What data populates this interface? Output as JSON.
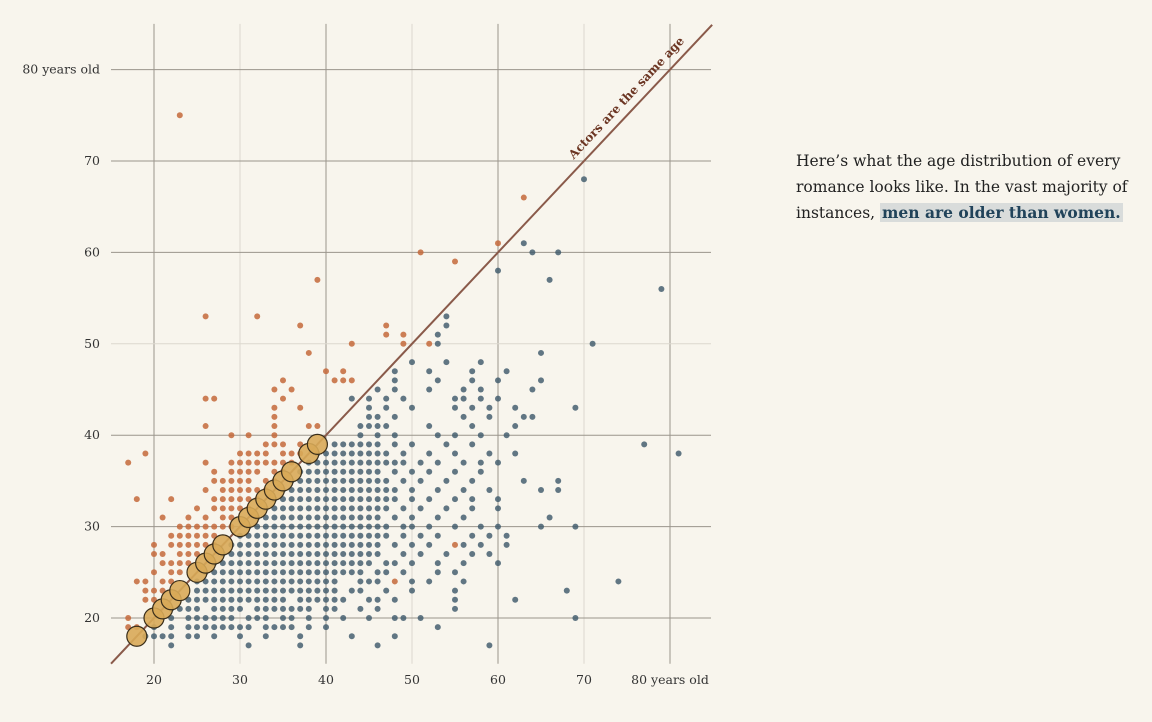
{
  "blurb": {
    "text": "Here’s what the age distribution of every romance looks like. In the vast majority of instances, ",
    "highlight": "men are older than women."
  },
  "chart_data": {
    "type": "scatter",
    "title": "",
    "xlabel": "",
    "ylabel": "",
    "xlim": [
      15,
      85
    ],
    "ylim": [
      15,
      85
    ],
    "x_ticks": [
      20,
      30,
      40,
      50,
      60,
      70,
      80
    ],
    "x_tick_labels": [
      "20",
      "30",
      "40",
      "50",
      "60",
      "70",
      "80 years old"
    ],
    "y_ticks": [
      20,
      30,
      40,
      50,
      60,
      70,
      80
    ],
    "y_tick_labels": [
      "20",
      "30",
      "40",
      "50",
      "60",
      "70",
      "80 years old"
    ],
    "grid": true,
    "reference_line": {
      "label": "Actors are the same age",
      "slope": 1,
      "intercept": 0,
      "color": "#8a5a4a"
    },
    "colors": {
      "men_older": "#3f5a6b",
      "women_older": "#c4693a",
      "same_age": "#d8aa58",
      "same_age_stroke": "#3a2e1a"
    },
    "same_age": [
      18,
      20,
      21,
      22,
      23,
      25,
      26,
      27,
      28,
      30,
      31,
      32,
      33,
      34,
      35,
      36,
      38,
      39
    ],
    "men_older_rows": [
      {
        "y": 17,
        "x": [
          22,
          31,
          37,
          46,
          59
        ]
      },
      {
        "y": 18,
        "x": [
          19,
          20,
          21,
          22,
          24,
          25,
          27,
          30,
          33,
          37,
          43,
          48
        ]
      },
      {
        "y": 19,
        "x": [
          20,
          22,
          24,
          25,
          26,
          27,
          28,
          29,
          30,
          31,
          33,
          34,
          35,
          36,
          38,
          40,
          53
        ]
      },
      {
        "y": 20,
        "x": [
          22,
          24,
          25,
          26,
          27,
          28,
          29,
          31,
          32,
          33,
          35,
          36,
          38,
          40,
          42,
          45,
          48,
          49,
          51,
          69
        ]
      },
      {
        "y": 21,
        "x": [
          22,
          23,
          24,
          25,
          27,
          28,
          29,
          30,
          32,
          33,
          34,
          35,
          36,
          37,
          38,
          40,
          41,
          44,
          46,
          55
        ]
      },
      {
        "y": 22,
        "x": [
          24,
          25,
          26,
          27,
          28,
          29,
          30,
          31,
          32,
          33,
          34,
          35,
          37,
          38,
          39,
          40,
          41,
          42,
          45,
          46,
          48,
          55,
          62
        ]
      },
      {
        "y": 23,
        "x": [
          25,
          26,
          27,
          28,
          29,
          30,
          31,
          32,
          33,
          34,
          35,
          36,
          37,
          38,
          39,
          40,
          41,
          43,
          44,
          47,
          50,
          55,
          68
        ]
      },
      {
        "y": 24,
        "x": [
          25,
          26,
          27,
          28,
          29,
          30,
          31,
          32,
          33,
          34,
          35,
          36,
          37,
          38,
          39,
          40,
          41,
          44,
          45,
          46,
          50,
          52,
          56,
          74
        ]
      },
      {
        "y": 25,
        "x": [
          26,
          27,
          28,
          29,
          30,
          31,
          32,
          33,
          34,
          35,
          36,
          37,
          38,
          39,
          40,
          41,
          42,
          43,
          44,
          46,
          47,
          49,
          53,
          55
        ]
      },
      {
        "y": 26,
        "x": [
          27,
          28,
          29,
          30,
          31,
          32,
          33,
          34,
          35,
          36,
          37,
          38,
          39,
          40,
          41,
          42,
          43,
          44,
          45,
          47,
          48,
          50,
          53,
          56,
          60
        ]
      },
      {
        "y": 27,
        "x": [
          28,
          29,
          30,
          31,
          32,
          33,
          34,
          35,
          36,
          37,
          38,
          39,
          40,
          41,
          42,
          43,
          44,
          45,
          46,
          49,
          51,
          54,
          57,
          59
        ]
      },
      {
        "y": 28,
        "x": [
          29,
          30,
          31,
          32,
          33,
          34,
          35,
          36,
          37,
          38,
          39,
          40,
          41,
          42,
          43,
          44,
          45,
          46,
          48,
          50,
          52,
          56,
          58,
          61
        ]
      },
      {
        "y": 29,
        "x": [
          30,
          31,
          32,
          33,
          34,
          35,
          36,
          37,
          38,
          39,
          40,
          41,
          42,
          43,
          44,
          45,
          46,
          47,
          49,
          51,
          53,
          57,
          59,
          61
        ]
      },
      {
        "y": 30,
        "x": [
          31,
          32,
          33,
          34,
          35,
          36,
          37,
          38,
          39,
          40,
          41,
          42,
          43,
          44,
          45,
          46,
          47,
          49,
          50,
          52,
          55,
          58,
          60,
          65,
          69
        ]
      },
      {
        "y": 31,
        "x": [
          32,
          33,
          34,
          35,
          36,
          37,
          38,
          39,
          40,
          41,
          42,
          43,
          44,
          45,
          46,
          48,
          50,
          53,
          56,
          66
        ]
      },
      {
        "y": 32,
        "x": [
          33,
          34,
          35,
          36,
          37,
          38,
          39,
          40,
          41,
          42,
          43,
          44,
          45,
          46,
          47,
          49,
          51,
          54,
          57,
          60
        ]
      },
      {
        "y": 33,
        "x": [
          34,
          35,
          36,
          37,
          38,
          39,
          40,
          41,
          42,
          43,
          44,
          45,
          46,
          47,
          48,
          50,
          52,
          55,
          57,
          60
        ]
      },
      {
        "y": 34,
        "x": [
          35,
          36,
          37,
          38,
          39,
          40,
          41,
          42,
          43,
          44,
          45,
          46,
          47,
          48,
          50,
          53,
          56,
          59,
          65,
          67
        ]
      },
      {
        "y": 35,
        "x": [
          36,
          37,
          38,
          39,
          40,
          41,
          42,
          43,
          44,
          45,
          46,
          47,
          49,
          51,
          54,
          57,
          63,
          67
        ]
      },
      {
        "y": 36,
        "x": [
          37,
          38,
          39,
          40,
          41,
          42,
          43,
          44,
          45,
          46,
          48,
          50,
          52,
          55,
          58
        ]
      },
      {
        "y": 37,
        "x": [
          38,
          39,
          40,
          41,
          42,
          43,
          44,
          45,
          46,
          47,
          48,
          49,
          51,
          53,
          56,
          58,
          60
        ]
      },
      {
        "y": 38,
        "x": [
          39,
          40,
          41,
          42,
          43,
          44,
          45,
          46,
          47,
          49,
          52,
          55,
          59,
          62,
          81
        ]
      },
      {
        "y": 39,
        "x": [
          41,
          42,
          43,
          44,
          45,
          46,
          48,
          50,
          54,
          57,
          77
        ]
      },
      {
        "y": 40,
        "x": [
          44,
          46,
          48,
          53,
          55,
          58,
          61
        ]
      },
      {
        "y": 41,
        "x": [
          44,
          45,
          46,
          47,
          52,
          57,
          62
        ]
      },
      {
        "y": 42,
        "x": [
          45,
          46,
          48,
          56,
          59,
          63,
          64
        ]
      },
      {
        "y": 43,
        "x": [
          45,
          47,
          50,
          55,
          57,
          59,
          62,
          69
        ]
      },
      {
        "y": 44,
        "x": [
          43,
          45,
          47,
          49,
          55,
          56,
          58,
          60
        ]
      },
      {
        "y": 45,
        "x": [
          46,
          48,
          52,
          56,
          58,
          64
        ]
      },
      {
        "y": 46,
        "x": [
          48,
          53,
          57,
          60,
          65
        ]
      },
      {
        "y": 47,
        "x": [
          48,
          52,
          57,
          61
        ]
      },
      {
        "y": 48,
        "x": [
          50,
          54,
          58
        ]
      },
      {
        "y": 49,
        "x": [
          65
        ]
      },
      {
        "y": 50,
        "x": [
          53,
          71
        ]
      },
      {
        "y": 51,
        "x": [
          53
        ]
      },
      {
        "y": 52,
        "x": [
          54
        ]
      },
      {
        "y": 53,
        "x": [
          54
        ]
      },
      {
        "y": 56,
        "x": [
          79
        ]
      },
      {
        "y": 57,
        "x": [
          66
        ]
      },
      {
        "y": 58,
        "x": [
          60
        ]
      },
      {
        "y": 60,
        "x": [
          64,
          67
        ]
      },
      {
        "y": 61,
        "x": [
          63
        ]
      },
      {
        "y": 68,
        "x": [
          70
        ]
      }
    ],
    "women_older_rows": [
      {
        "y": 19,
        "x": [
          17,
          18
        ]
      },
      {
        "y": 20,
        "x": [
          17
        ]
      },
      {
        "y": 22,
        "x": [
          19,
          20
        ]
      },
      {
        "y": 23,
        "x": [
          19,
          20,
          21
        ]
      },
      {
        "y": 24,
        "x": [
          18,
          19,
          21,
          22,
          48
        ]
      },
      {
        "y": 25,
        "x": [
          20,
          22,
          23
        ]
      },
      {
        "y": 26,
        "x": [
          21,
          22,
          23,
          24
        ]
      },
      {
        "y": 27,
        "x": [
          20,
          21,
          23,
          24,
          25
        ]
      },
      {
        "y": 28,
        "x": [
          20,
          22,
          23,
          24,
          25,
          26,
          27,
          55
        ]
      },
      {
        "y": 29,
        "x": [
          22,
          23,
          24,
          25,
          26,
          27
        ]
      },
      {
        "y": 30,
        "x": [
          23,
          24,
          25,
          26,
          27,
          28,
          29
        ]
      },
      {
        "y": 31,
        "x": [
          21,
          24,
          26,
          28,
          29
        ]
      },
      {
        "y": 32,
        "x": [
          25,
          27,
          28,
          29,
          30,
          31
        ]
      },
      {
        "y": 33,
        "x": [
          18,
          22,
          27,
          28,
          29,
          30,
          31,
          32
        ]
      },
      {
        "y": 34,
        "x": [
          26,
          28,
          29,
          30,
          31,
          32,
          33
        ]
      },
      {
        "y": 35,
        "x": [
          27,
          28,
          29,
          30,
          31,
          33,
          34
        ]
      },
      {
        "y": 36,
        "x": [
          27,
          29,
          30,
          31,
          32,
          34,
          35
        ]
      },
      {
        "y": 37,
        "x": [
          17,
          26,
          29,
          30,
          31,
          32,
          33,
          34,
          35,
          36
        ]
      },
      {
        "y": 38,
        "x": [
          19,
          30,
          31,
          32,
          33,
          35,
          36,
          37
        ]
      },
      {
        "y": 39,
        "x": [
          33,
          34,
          35,
          37
        ]
      },
      {
        "y": 40,
        "x": [
          29,
          31,
          34
        ]
      },
      {
        "y": 41,
        "x": [
          26,
          34,
          38,
          39
        ]
      },
      {
        "y": 42,
        "x": [
          34
        ]
      },
      {
        "y": 43,
        "x": [
          34,
          37
        ]
      },
      {
        "y": 44,
        "x": [
          26,
          27,
          35
        ]
      },
      {
        "y": 45,
        "x": [
          34,
          36
        ]
      },
      {
        "y": 46,
        "x": [
          35,
          41,
          42,
          43
        ]
      },
      {
        "y": 47,
        "x": [
          40,
          42
        ]
      },
      {
        "y": 49,
        "x": [
          38
        ]
      },
      {
        "y": 50,
        "x": [
          43,
          49,
          52
        ]
      },
      {
        "y": 51,
        "x": [
          47,
          49
        ]
      },
      {
        "y": 52,
        "x": [
          37,
          47
        ]
      },
      {
        "y": 53,
        "x": [
          26,
          32
        ]
      },
      {
        "y": 57,
        "x": [
          39
        ]
      },
      {
        "y": 59,
        "x": [
          55
        ]
      },
      {
        "y": 60,
        "x": [
          51
        ]
      },
      {
        "y": 61,
        "x": [
          60
        ]
      },
      {
        "y": 66,
        "x": [
          63
        ]
      },
      {
        "y": 75,
        "x": [
          23
        ]
      }
    ]
  }
}
